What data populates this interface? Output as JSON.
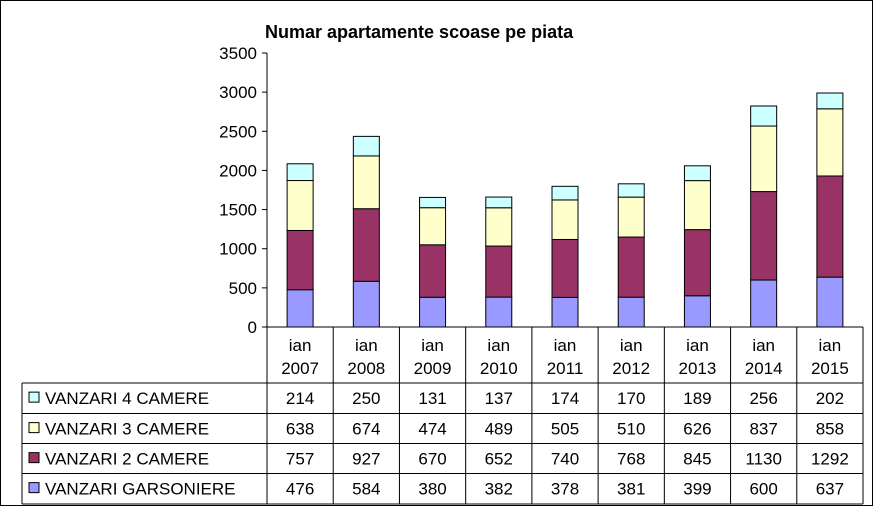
{
  "chart_data": {
    "type": "bar",
    "stacked": true,
    "title": "Numar apartamente scoase pe piata",
    "categories": [
      [
        "ian",
        "2007"
      ],
      [
        "ian",
        "2008"
      ],
      [
        "ian",
        "2009"
      ],
      [
        "ian",
        "2010"
      ],
      [
        "ian",
        "2011"
      ],
      [
        "ian",
        "2012"
      ],
      [
        "ian",
        "2013"
      ],
      [
        "ian",
        "2014"
      ],
      [
        "ian",
        "2015"
      ]
    ],
    "ylim": [
      0,
      3500
    ],
    "yticks": [
      "0",
      "500",
      "1000",
      "1500",
      "2000",
      "2500",
      "3000",
      "3500"
    ],
    "grid": false,
    "legend": "data-table-left",
    "series": [
      {
        "name": "VANZARI GARSONIERE",
        "color": "#9999ff",
        "values": [
          476,
          584,
          380,
          382,
          378,
          381,
          399,
          600,
          637
        ]
      },
      {
        "name": "VANZARI 2 CAMERE",
        "color": "#993366",
        "values": [
          757,
          927,
          670,
          652,
          740,
          768,
          845,
          1130,
          1292
        ]
      },
      {
        "name": "VANZARI 3 CAMERE",
        "color": "#ffffcc",
        "values": [
          638,
          674,
          474,
          489,
          505,
          510,
          626,
          837,
          858
        ]
      },
      {
        "name": "VANZARI 4 CAMERE",
        "color": "#ccffff",
        "values": [
          214,
          250,
          131,
          137,
          174,
          170,
          189,
          256,
          202
        ]
      }
    ]
  }
}
